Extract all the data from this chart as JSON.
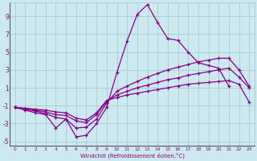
{
  "xlabel": "Windchill (Refroidissement éolien,°C)",
  "xlim": [
    -0.5,
    23.5
  ],
  "ylim": [
    -5.5,
    10.5
  ],
  "xtick_labels": [
    "0",
    "1",
    "2",
    "3",
    "4",
    "5",
    "6",
    "7",
    "8",
    "9",
    "10",
    "11",
    "12",
    "13",
    "14",
    "15",
    "16",
    "17",
    "18",
    "19",
    "20",
    "21",
    "22",
    "23"
  ],
  "xtick_vals": [
    0,
    1,
    2,
    3,
    4,
    5,
    6,
    7,
    8,
    9,
    10,
    11,
    12,
    13,
    14,
    15,
    16,
    17,
    18,
    19,
    20,
    21,
    22,
    23
  ],
  "ytick_vals": [
    -5,
    -3,
    -1,
    1,
    3,
    5,
    7,
    9
  ],
  "ytick_labels": [
    "-5",
    "-3",
    "-1",
    "1",
    "3",
    "5",
    "7",
    "9"
  ],
  "background_color": "#cce9f0",
  "grid_color": "#aacccc",
  "line_color": "#880088",
  "series_x": [
    [
      0,
      1,
      2,
      3,
      4,
      5,
      6,
      7,
      8,
      9,
      10,
      11,
      12,
      13,
      14,
      15,
      16,
      17,
      18,
      19,
      20,
      21
    ],
    [
      0,
      1,
      2,
      3,
      4,
      5,
      6,
      7,
      8,
      9,
      10,
      11,
      12,
      13,
      14,
      15,
      16,
      17,
      18,
      19,
      20,
      21,
      22,
      23
    ],
    [
      0,
      1,
      2,
      3,
      4,
      5,
      6,
      7,
      8,
      9,
      10,
      11,
      12,
      13,
      14,
      15,
      16,
      17,
      18,
      19,
      20,
      21,
      22,
      23
    ],
    [
      0,
      1,
      2,
      3,
      4,
      5,
      6,
      7,
      8,
      9,
      10,
      11,
      12,
      13,
      14,
      15,
      16,
      17,
      18,
      19,
      20,
      21,
      22,
      23
    ]
  ],
  "series_y": [
    [
      -1.2,
      -1.5,
      -1.8,
      -2.0,
      -3.5,
      -2.5,
      -4.5,
      -4.3,
      -3.0,
      -1.2,
      2.7,
      6.2,
      9.2,
      10.3,
      8.3,
      6.5,
      6.3,
      5.0,
      3.8,
      3.5,
      3.2,
      1.2
    ],
    [
      -1.2,
      -1.4,
      -1.6,
      -1.9,
      -2.3,
      -2.5,
      -3.5,
      -3.4,
      -2.5,
      -0.7,
      0.6,
      1.2,
      1.7,
      2.2,
      2.6,
      3.0,
      3.3,
      3.6,
      3.9,
      4.1,
      4.3,
      4.3,
      3.0,
      1.2
    ],
    [
      -1.2,
      -1.3,
      -1.5,
      -1.7,
      -2.0,
      -2.1,
      -2.7,
      -2.9,
      -2.0,
      -0.5,
      0.2,
      0.6,
      1.0,
      1.3,
      1.6,
      1.9,
      2.1,
      2.4,
      2.6,
      2.8,
      3.0,
      3.2,
      2.2,
      1.0
    ],
    [
      -1.2,
      -1.3,
      -1.4,
      -1.5,
      -1.7,
      -1.8,
      -2.4,
      -2.6,
      -1.8,
      -0.4,
      -0.1,
      0.2,
      0.4,
      0.6,
      0.8,
      1.0,
      1.2,
      1.4,
      1.5,
      1.6,
      1.7,
      1.8,
      1.4,
      -0.6
    ]
  ]
}
